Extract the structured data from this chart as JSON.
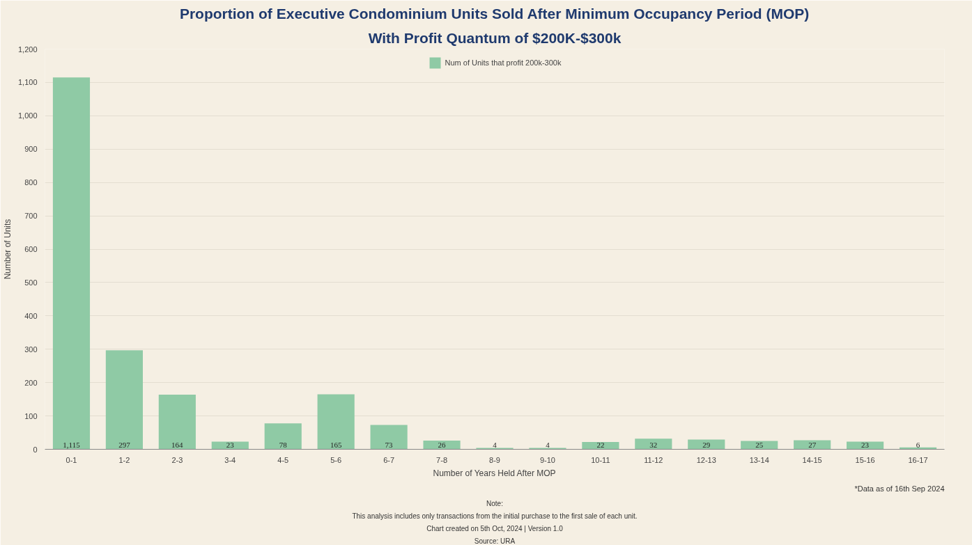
{
  "chart_data": {
    "type": "bar",
    "title": "Proportion of Executive Condominium Units Sold After Minimum Occupancy Period (MOP)",
    "subtitle": "With Profit Quantum of $200K-$300k",
    "xlabel": "Number of Years Held After MOP",
    "ylabel": "Number of Units",
    "categories": [
      "0-1",
      "1-2",
      "2-3",
      "3-4",
      "4-5",
      "5-6",
      "6-7",
      "7-8",
      "8-9",
      "9-10",
      "10-11",
      "11-12",
      "12-13",
      "13-14",
      "14-15",
      "15-16",
      "16-17"
    ],
    "series": [
      {
        "name": "Num of Units that profit 200k-300k",
        "color": "#8fcaa5",
        "values": [
          1115,
          297,
          164,
          23,
          78,
          165,
          73,
          26,
          4,
          4,
          22,
          32,
          29,
          25,
          27,
          23,
          6
        ]
      }
    ],
    "ylim": [
      0,
      1200
    ],
    "yticks": [
      0,
      100,
      200,
      300,
      400,
      500,
      600,
      700,
      800,
      900,
      {
        "value": 1000,
        "label": "1,000"
      },
      {
        "value": 1100,
        "label": "1,100"
      },
      {
        "value": 1200,
        "label": "1,200"
      }
    ],
    "value_labels": [
      "1,115",
      "297",
      "164",
      "23",
      "78",
      "165",
      "73",
      "26",
      "4",
      "4",
      "22",
      "32",
      "29",
      "25",
      "27",
      "23",
      "6"
    ],
    "grid": "y",
    "legend": "top",
    "annotations": [
      "*Data as of 16th Sep 2024",
      "Note:",
      "This analysis includes only transactions from the initial purchase to the first sale of each unit.",
      "Chart created on 5th Oct, 2024 | Version 1.0",
      "Source: URA"
    ]
  }
}
